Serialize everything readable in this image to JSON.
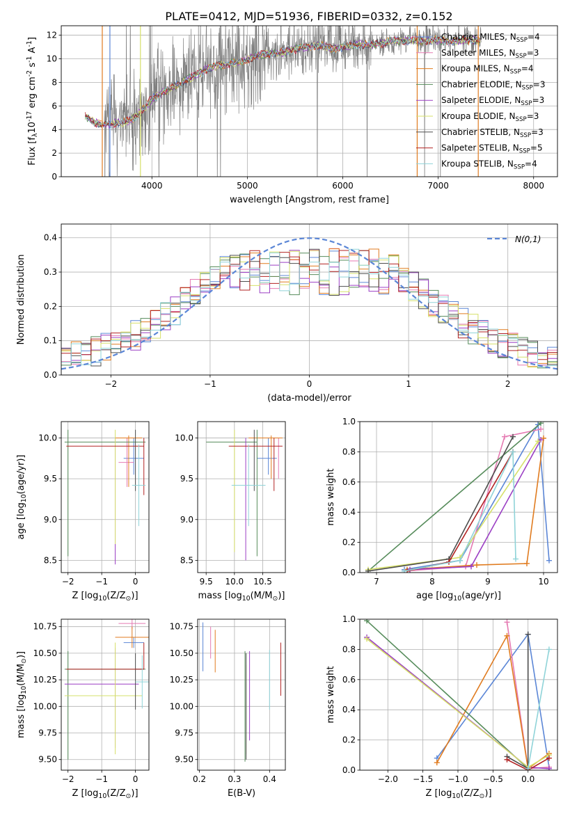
{
  "figure": {
    "title": "PLATE=0412, MJD=51936, FIBERID=0332, z=0.152"
  },
  "colors": {
    "Chabrier MILES": "#5b86d6",
    "Salpeter MILES": "#e57ab2",
    "Kroupa MILES": "#e07b1f",
    "Chabrier ELODIE": "#558b5a",
    "Salpeter ELODIE": "#9b3fc4",
    "Kroupa ELODIE": "#d6e06a",
    "Chabrier STELIB": "#4d4d4d",
    "Salpeter STELIB": "#b22222",
    "Kroupa STELIB": "#8fd3d8",
    "data": "#808080",
    "normal": "#5b86d6"
  },
  "chart_data": [
    {
      "id": "spectrum",
      "type": "line",
      "title": "PLATE=0412, MJD=51936, FIBERID=0332, z=0.152",
      "xlabel": "wavelength [Angstrom, rest frame]",
      "ylabel": "Flux [f$_\\lambda$10$^{-17}$ erg cm$^{-2}$ s$^{-1}$ A$^{-1}$]",
      "xlim": [
        3050,
        8250
      ],
      "ylim": [
        0,
        12.8
      ],
      "xticks": [
        4000,
        5000,
        6000,
        7000,
        8000
      ],
      "yticks": [
        0,
        2,
        4,
        6,
        8,
        10,
        12
      ],
      "legend_position": "top-right",
      "legend": [
        "Chabrier MILES, N$_{SSP}$=4",
        "Salpeter MILES, N$_{SSP}$=3",
        "Kroupa MILES, N$_{SSP}$=4",
        "Chabrier ELODIE, N$_{SSP}$=3",
        "Salpeter ELODIE, N$_{SSP}$=3",
        "Kroupa ELODIE, N$_{SSP}$=3",
        "Chabrier STELIB, N$_{SSP}$=3",
        "Salpeter STELIB, N$_{SSP}$=5",
        "Kroupa STELIB, N$_{SSP}$=4"
      ],
      "model_continuum": {
        "x": [
          3300,
          3400,
          3500,
          3600,
          3700,
          3800,
          3900,
          4000,
          4100,
          4200,
          4300,
          4400,
          4500,
          4600,
          4700,
          4800,
          4900,
          5000,
          5100,
          5200,
          5300,
          5400,
          5500,
          5600,
          5700,
          5800,
          5900,
          6000,
          6100,
          6200,
          6300,
          6400,
          6500,
          6600,
          6700,
          6800,
          6900,
          7000,
          7100,
          7200,
          7300,
          7400
        ],
        "y": [
          5.1,
          4.6,
          4.4,
          4.5,
          4.6,
          4.9,
          5.6,
          6.6,
          7.1,
          7.5,
          7.9,
          8.4,
          8.8,
          9.2,
          9.4,
          9.6,
          9.7,
          9.9,
          10.3,
          10.4,
          10.5,
          10.6,
          10.8,
          11.0,
          11.1,
          11.1,
          10.8,
          11.0,
          11.2,
          11.2,
          11.2,
          11.3,
          11.5,
          11.5,
          11.6,
          11.5,
          11.6,
          11.6,
          11.5,
          11.5,
          11.6,
          11.6
        ]
      },
      "data_noise_range": [
        3500,
        7450
      ]
    },
    {
      "id": "residuals",
      "type": "line",
      "xlabel": "(data-model)/error",
      "ylabel": "Normed distribution",
      "xlim": [
        -2.5,
        2.5
      ],
      "ylim": [
        0,
        0.44
      ],
      "xticks": [
        -2,
        -1,
        0,
        1,
        2
      ],
      "yticks": [
        0.0,
        0.1,
        0.2,
        0.3,
        0.4
      ],
      "legend": [
        "$\\mathcal{N}(0,1)$"
      ],
      "legend_position": "top-right",
      "bin_width": 0.1
    },
    {
      "id": "age-vs-Z",
      "type": "scatter",
      "xlabel": "Z [log$_{10}$(Z/Z$_\\odot$)]",
      "ylabel": "age  [log$_{10}$(age/yr)]",
      "xlim": [
        -2.2,
        0.4
      ],
      "ylim": [
        8.35,
        10.2
      ],
      "xticks": [
        -2,
        -1,
        0
      ],
      "yticks": [
        8.5,
        9.0,
        9.5,
        10.0
      ],
      "points": [
        {
          "model": "Chabrier MILES",
          "x": -0.05,
          "xerr": [
            0.3,
            0.3
          ],
          "y": 9.75,
          "yerr": [
            0.2,
            0.25
          ]
        },
        {
          "model": "Salpeter MILES",
          "x": -0.25,
          "xerr": [
            0.25,
            0.2
          ],
          "y": 9.7,
          "yerr": [
            0.3,
            0.3
          ]
        },
        {
          "model": "Kroupa MILES",
          "x": -0.2,
          "xerr": [
            0.4,
            0.4
          ],
          "y": 10.0,
          "yerr": [
            0.6,
            0.03
          ]
        },
        {
          "model": "Chabrier ELODIE",
          "x": -2.0,
          "xerr": [
            0.1,
            2.3
          ],
          "y": 9.95,
          "yerr": [
            1.4,
            0.15
          ]
        },
        {
          "model": "Salpeter ELODIE",
          "x": -0.6,
          "xerr": [
            0.0,
            0.0
          ],
          "y": 9.1,
          "yerr": [
            0.65,
            0.9
          ]
        },
        {
          "model": "Kroupa ELODIE",
          "x": -0.6,
          "xerr": [
            0.0,
            0.0
          ],
          "y": 9.6,
          "yerr": [
            0.9,
            0.5
          ]
        },
        {
          "model": "Chabrier STELIB",
          "x": 0.0,
          "xerr": [
            0.0,
            0.0
          ],
          "y": 9.7,
          "yerr": [
            0.35,
            0.4
          ]
        },
        {
          "model": "Salpeter STELIB",
          "x": 0.25,
          "xerr": [
            2.3,
            0.0
          ],
          "y": 9.9,
          "yerr": [
            0.6,
            0.1
          ]
        },
        {
          "model": "Kroupa STELIB",
          "x": 0.1,
          "xerr": [
            0.2,
            0.2
          ],
          "y": 9.42,
          "yerr": [
            0.5,
            0.5
          ]
        }
      ]
    },
    {
      "id": "age-vs-mass",
      "type": "scatter",
      "xlabel": "mass [log$_{10}$(M/M$_\\odot$)]",
      "ylabel": "",
      "xlim": [
        9.35,
        10.9
      ],
      "ylim": [
        8.35,
        10.2
      ],
      "xticks": [
        9.5,
        10.0,
        10.5
      ],
      "yticks": [
        8.5,
        9.0,
        9.5,
        10.0
      ],
      "points": [
        {
          "model": "Chabrier MILES",
          "x": 10.6,
          "xerr": [
            0.2,
            0.15
          ],
          "y": 9.75,
          "yerr": [
            0.2,
            0.25
          ]
        },
        {
          "model": "Salpeter MILES",
          "x": 10.78,
          "xerr": [
            0.0,
            0.0
          ],
          "y": 9.8,
          "yerr": [
            0.3,
            0.2
          ]
        },
        {
          "model": "Kroupa MILES",
          "x": 10.65,
          "xerr": [
            0.4,
            0.2
          ],
          "y": 10.0,
          "yerr": [
            0.5,
            0.03
          ]
        },
        {
          "model": "Chabrier ELODIE",
          "x": 10.4,
          "xerr": [
            0.9,
            0.0
          ],
          "y": 9.95,
          "yerr": [
            1.4,
            0.15
          ]
        },
        {
          "model": "Salpeter ELODIE",
          "x": 10.2,
          "xerr": [
            0.0,
            0.0
          ],
          "y": 9.3,
          "yerr": [
            0.8,
            0.7
          ]
        },
        {
          "model": "Kroupa ELODIE",
          "x": 10.0,
          "xerr": [
            0.0,
            0.0
          ],
          "y": 9.3,
          "yerr": [
            0.7,
            0.8
          ]
        },
        {
          "model": "Chabrier STELIB",
          "x": 10.35,
          "xerr": [
            0.0,
            0.0
          ],
          "y": 9.7,
          "yerr": [
            0.35,
            0.4
          ]
        },
        {
          "model": "Salpeter STELIB",
          "x": 10.7,
          "xerr": [
            0.8,
            0.15
          ],
          "y": 9.9,
          "yerr": [
            0.55,
            0.1
          ]
        },
        {
          "model": "Kroupa STELIB",
          "x": 10.25,
          "xerr": [
            0.3,
            0.3
          ],
          "y": 9.42,
          "yerr": [
            0.5,
            0.5
          ]
        }
      ]
    },
    {
      "id": "weight-vs-age",
      "type": "line",
      "xlabel": "age  [log$_{10}$(age/yr)]",
      "ylabel": "mass weight",
      "xlim": [
        6.7,
        10.25
      ],
      "ylim": [
        0,
        1.0
      ],
      "xticks": [
        7,
        8,
        9,
        10
      ],
      "yticks": [
        0.0,
        0.2,
        0.4,
        0.6,
        0.8,
        1.0
      ],
      "series": [
        {
          "model": "Chabrier MILES",
          "x": [
            7.5,
            8.5,
            9.9,
            10.1
          ],
          "y": [
            0.02,
            0.08,
            0.98,
            0.08
          ]
        },
        {
          "model": "Salpeter MILES",
          "x": [
            7.5,
            8.6,
            9.3,
            9.95
          ],
          "y": [
            0.01,
            0.04,
            0.9,
            0.95
          ]
        },
        {
          "model": "Kroupa MILES",
          "x": [
            7.55,
            8.8,
            9.7,
            10.0
          ],
          "y": [
            0.02,
            0.05,
            0.06,
            0.89
          ]
        },
        {
          "model": "Chabrier ELODIE",
          "x": [
            6.85,
            9.95
          ],
          "y": [
            0.01,
            0.99
          ]
        },
        {
          "model": "Salpeter ELODIE",
          "x": [
            7.6,
            8.7,
            9.95
          ],
          "y": [
            0.02,
            0.04,
            0.88
          ]
        },
        {
          "model": "Kroupa ELODIE",
          "x": [
            6.85,
            8.5,
            9.9
          ],
          "y": [
            0.02,
            0.1,
            0.87
          ]
        },
        {
          "model": "Chabrier STELIB",
          "x": [
            6.85,
            8.3,
            9.45
          ],
          "y": [
            0.01,
            0.09,
            0.9
          ]
        },
        {
          "model": "Salpeter STELIB",
          "x": [
            7.55,
            8.3,
            9.45
          ],
          "y": [
            0.01,
            0.07,
            0.8
          ]
        },
        {
          "model": "Kroupa STELIB",
          "x": [
            7.5,
            8.5,
            9.45,
            9.5
          ],
          "y": [
            0.01,
            0.08,
            0.8,
            0.09
          ]
        }
      ]
    },
    {
      "id": "mass-vs-Z",
      "type": "scatter",
      "xlabel": "Z [log$_{10}$(Z/Z$_\\odot$)]",
      "ylabel": "mass [log$_{10}$(M/M$_\\odot$)]",
      "xlim": [
        -2.2,
        0.4
      ],
      "ylim": [
        9.4,
        10.82
      ],
      "xticks": [
        -2,
        -1,
        0
      ],
      "yticks": [
        9.5,
        9.75,
        10.0,
        10.25,
        10.5,
        10.75
      ],
      "points": [
        {
          "model": "Chabrier MILES",
          "x": -0.05,
          "xerr": [
            0.3,
            0.3
          ],
          "y": 10.6,
          "yerr": [
            0.05,
            0.05
          ]
        },
        {
          "model": "Salpeter MILES",
          "x": -0.1,
          "xerr": [
            0.4,
            0.4
          ],
          "y": 10.78,
          "yerr": [
            0.05,
            0.08
          ]
        },
        {
          "model": "Kroupa MILES",
          "x": -0.1,
          "xerr": [
            0.5,
            0.5
          ],
          "y": 10.65,
          "yerr": [
            0.1,
            0.1
          ]
        },
        {
          "model": "Chabrier ELODIE",
          "x": -2.0,
          "xerr": [
            0.1,
            2.3
          ],
          "y": 10.35,
          "yerr": [
            0.85,
            0.17
          ]
        },
        {
          "model": "Salpeter ELODIE",
          "x": -0.6,
          "xerr": [
            1.5,
            0.7
          ],
          "y": 10.21,
          "yerr": [
            0.6,
            0.34
          ]
        },
        {
          "model": "Kroupa ELODIE",
          "x": -0.6,
          "xerr": [
            1.5,
            0.8
          ],
          "y": 10.1,
          "yerr": [
            0.55,
            0.5
          ]
        },
        {
          "model": "Chabrier STELIB",
          "x": 0.0,
          "xerr": [
            0.0,
            0.25
          ],
          "y": 10.35,
          "yerr": [
            0.38,
            0.15
          ]
        },
        {
          "model": "Salpeter STELIB",
          "x": 0.25,
          "xerr": [
            2.3,
            0.0
          ],
          "y": 10.35,
          "yerr": [
            0.0,
            0.25
          ]
        },
        {
          "model": "Kroupa STELIB",
          "x": 0.2,
          "xerr": [
            0.2,
            0.2
          ],
          "y": 10.23,
          "yerr": [
            0.25,
            0.25
          ]
        }
      ]
    },
    {
      "id": "mass-vs-EBV",
      "type": "scatter",
      "xlabel": "E(B-V)",
      "ylabel": "",
      "xlim": [
        0.195,
        0.445
      ],
      "ylim": [
        9.4,
        10.82
      ],
      "xticks": [
        0.2,
        0.3,
        0.4
      ],
      "yticks": [
        9.5,
        9.75,
        10.0,
        10.25,
        10.5,
        10.75
      ],
      "points": [
        {
          "model": "Chabrier MILES",
          "x": 0.21,
          "y": 10.55,
          "yerr": [
            0.22,
            0.24
          ]
        },
        {
          "model": "Salpeter MILES",
          "x": 0.232,
          "y": 10.6,
          "yerr": [
            0.15,
            0.15
          ]
        },
        {
          "model": "Kroupa MILES",
          "x": 0.245,
          "y": 10.52,
          "yerr": [
            0.2,
            0.2
          ]
        },
        {
          "model": "Chabrier ELODIE",
          "x": 0.33,
          "y": 10.0,
          "yerr": [
            0.52,
            0.52
          ]
        },
        {
          "model": "Salpeter ELODIE",
          "x": 0.343,
          "y": 10.1,
          "yerr": [
            0.42,
            0.42
          ]
        },
        {
          "model": "Kroupa ELODIE",
          "x": 0.333,
          "y": 9.97,
          "yerr": [
            0.42,
            0.42
          ]
        },
        {
          "model": "Chabrier STELIB",
          "x": 0.333,
          "y": 10.0,
          "yerr": [
            0.5,
            0.5
          ]
        },
        {
          "model": "Salpeter STELIB",
          "x": 0.432,
          "y": 10.35,
          "yerr": [
            0.25,
            0.25
          ]
        },
        {
          "model": "Kroupa STELIB",
          "x": 0.4,
          "y": 10.25,
          "yerr": [
            0.28,
            0.28
          ]
        }
      ]
    },
    {
      "id": "weight-vs-Z",
      "type": "line",
      "xlabel": "Z [log$_{10}$(Z/Z$_\\odot$)]",
      "ylabel": "mass weight",
      "xlim": [
        -2.4,
        0.42
      ],
      "ylim": [
        0,
        1.0
      ],
      "xticks": [
        -2.0,
        -1.5,
        -1.0,
        -0.5,
        0.0
      ],
      "yticks": [
        0.0,
        0.2,
        0.4,
        0.6,
        0.8,
        1.0
      ],
      "series": [
        {
          "model": "Chabrier MILES",
          "x": [
            -1.3,
            0.0,
            0.3
          ],
          "y": [
            0.08,
            0.9,
            0.02
          ]
        },
        {
          "model": "Salpeter MILES",
          "x": [
            -0.3,
            0.0,
            0.3
          ],
          "y": [
            0.98,
            0.01,
            0.02
          ]
        },
        {
          "model": "Kroupa MILES",
          "x": [
            -1.3,
            -0.3,
            0.0,
            0.3
          ],
          "y": [
            0.05,
            0.89,
            0.01,
            0.11
          ]
        },
        {
          "model": "Chabrier ELODIE",
          "x": [
            -2.3,
            0.0
          ],
          "y": [
            0.99,
            0.01
          ]
        },
        {
          "model": "Salpeter ELODIE",
          "x": [
            -2.3,
            0.0,
            0.3
          ],
          "y": [
            0.88,
            0.02,
            0.01
          ]
        },
        {
          "model": "Kroupa ELODIE",
          "x": [
            -2.3,
            0.0,
            0.3
          ],
          "y": [
            0.87,
            0.02,
            0.1
          ]
        },
        {
          "model": "Chabrier STELIB",
          "x": [
            -0.3,
            0.0,
            0.0
          ],
          "y": [
            0.09,
            0.01,
            0.9
          ]
        },
        {
          "model": "Salpeter STELIB",
          "x": [
            -0.3,
            0.0,
            0.3
          ],
          "y": [
            0.07,
            0.0,
            0.08
          ]
        },
        {
          "model": "Kroupa STELIB",
          "x": [
            0.0,
            0.3
          ],
          "y": [
            0.01,
            0.8
          ]
        }
      ]
    }
  ]
}
